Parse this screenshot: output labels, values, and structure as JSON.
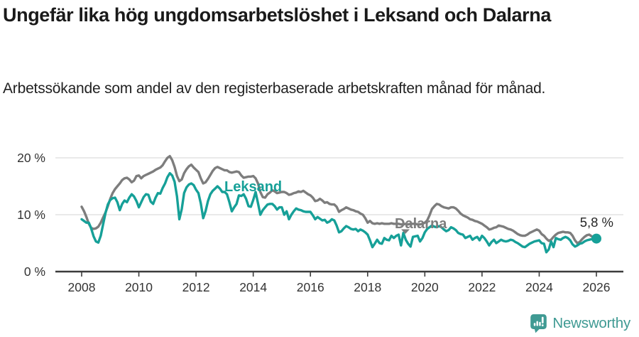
{
  "header": {
    "title": "Ungefär lika hög ungdomsarbetslöshet i Leksand och Dalarna",
    "subtitle": "Arbetssökande som andel av den registerbaserade arbetskraften månad för månad."
  },
  "footer": {
    "brand": "Newsworthy",
    "brand_color": "#3f9a93"
  },
  "chart_data": {
    "type": "line",
    "x_unit": "month",
    "x_range_years": [
      2008,
      2026
    ],
    "x_ticks": [
      2008,
      2010,
      2012,
      2014,
      2016,
      2018,
      2020,
      2022,
      2024,
      2026
    ],
    "y_ticks": [
      {
        "value": 0,
        "label": "0 %"
      },
      {
        "value": 10,
        "label": "10 %"
      },
      {
        "value": 20,
        "label": "20 %"
      }
    ],
    "ylim": [
      0,
      22
    ],
    "grid": "horizontal",
    "end_label": "5,8 %",
    "end_dot_series": "Leksand",
    "series": [
      {
        "name": "Dalarna",
        "color": "#7d7d7d",
        "values": [
          11.4,
          10.6,
          9.6,
          8.4,
          7.7,
          7.5,
          7.6,
          7.9,
          8.6,
          9.5,
          10.4,
          11.5,
          12.8,
          13.8,
          14.5,
          15.0,
          15.5,
          16.1,
          16.4,
          16.5,
          16.2,
          15.7,
          16.0,
          16.8,
          16.9,
          16.4,
          16.8,
          17.0,
          17.2,
          17.4,
          17.6,
          17.9,
          18.1,
          18.3,
          18.7,
          19.4,
          20.0,
          20.3,
          19.6,
          18.4,
          16.8,
          15.9,
          16.2,
          17.3,
          18.0,
          18.5,
          18.8,
          18.3,
          17.9,
          17.5,
          16.4,
          15.5,
          15.7,
          16.3,
          17.0,
          17.7,
          18.2,
          18.4,
          18.2,
          18.0,
          17.8,
          17.8,
          17.5,
          17.4,
          17.5,
          17.6,
          17.5,
          16.9,
          16.5,
          16.6,
          16.7,
          16.7,
          16.8,
          16.4,
          15.5,
          14.0,
          13.1,
          13.0,
          13.6,
          13.9,
          14.3,
          14.1,
          13.8,
          13.9,
          14.0,
          14.0,
          13.8,
          13.5,
          13.6,
          13.8,
          13.9,
          14.1,
          14.0,
          14.2,
          13.9,
          13.6,
          13.4,
          13.0,
          12.4,
          12.5,
          12.8,
          12.5,
          12.1,
          12.2,
          11.9,
          11.8,
          11.8,
          11.4,
          10.5,
          10.8,
          11.0,
          11.3,
          11.1,
          10.9,
          10.8,
          10.6,
          10.5,
          10.2,
          10.0,
          9.4,
          8.6,
          8.9,
          8.5,
          8.4,
          8.5,
          8.4,
          8.5,
          8.4,
          8.4,
          8.4,
          8.5,
          8.4,
          8.4,
          8.4,
          8.3,
          8.3,
          8.4,
          8.3,
          8.4,
          8.4,
          8.4,
          8.3,
          8.3,
          8.4,
          8.6,
          9.0,
          9.9,
          11.0,
          11.5,
          11.9,
          11.8,
          11.5,
          11.3,
          11.2,
          11.1,
          11.3,
          11.3,
          11.1,
          10.7,
          10.2,
          9.9,
          9.7,
          9.5,
          9.2,
          9.1,
          8.9,
          8.8,
          8.6,
          8.4,
          8.1,
          7.8,
          7.4,
          7.5,
          7.7,
          7.8,
          8.1,
          8.0,
          7.9,
          7.7,
          7.5,
          7.4,
          7.2,
          6.9,
          6.6,
          6.4,
          6.3,
          6.3,
          6.5,
          6.8,
          7.0,
          7.2,
          7.4,
          7.2,
          6.6,
          6.3,
          5.8,
          5.4,
          5.6,
          6.1,
          6.5,
          6.8,
          6.9,
          7.0,
          6.9,
          6.9,
          6.8,
          6.3,
          5.5,
          5.0,
          5.2,
          5.7,
          6.1,
          6.4,
          6.5,
          6.2,
          6.0,
          5.9
        ]
      },
      {
        "name": "Leksand",
        "color": "#16a098",
        "values": [
          9.2,
          8.9,
          8.6,
          8.6,
          7.6,
          6.2,
          5.3,
          5.1,
          6.3,
          8.3,
          10.3,
          11.8,
          12.6,
          12.9,
          13.0,
          12.2,
          10.8,
          11.9,
          12.5,
          12.2,
          13.0,
          13.6,
          13.2,
          12.4,
          11.3,
          12.2,
          13.1,
          13.6,
          13.5,
          12.3,
          11.9,
          13.0,
          13.8,
          13.7,
          14.7,
          15.5,
          16.6,
          17.3,
          16.9,
          15.8,
          13.2,
          9.2,
          11.0,
          13.8,
          14.8,
          15.3,
          15.5,
          15.2,
          14.4,
          13.8,
          12.0,
          9.4,
          10.6,
          12.4,
          13.6,
          14.2,
          14.6,
          15.0,
          14.6,
          14.0,
          14.0,
          13.6,
          12.2,
          10.6,
          11.3,
          11.9,
          13.4,
          13.3,
          13.6,
          12.8,
          11.5,
          11.4,
          12.6,
          14.0,
          12.0,
          10.0,
          10.8,
          11.3,
          11.8,
          11.9,
          11.9,
          11.5,
          10.9,
          11.3,
          11.3,
          10.0,
          10.6,
          9.2,
          10.0,
          10.6,
          11.1,
          10.9,
          10.8,
          10.6,
          10.5,
          10.5,
          10.5,
          9.9,
          9.2,
          9.6,
          9.3,
          9.0,
          9.1,
          8.6,
          8.8,
          9.2,
          9.0,
          8.1,
          6.9,
          7.1,
          7.6,
          8.0,
          7.8,
          7.5,
          7.4,
          7.5,
          7.1,
          7.4,
          7.2,
          6.9,
          6.5,
          5.5,
          4.3,
          4.9,
          5.6,
          5.0,
          4.9,
          5.9,
          5.6,
          5.5,
          6.3,
          5.9,
          6.3,
          6.5,
          4.6,
          6.8,
          5.6,
          4.9,
          4.4,
          6.1,
          6.2,
          6.3,
          5.3,
          5.9,
          6.9,
          7.5,
          7.8,
          8.1,
          7.9,
          7.8,
          8.0,
          7.8,
          7.4,
          7.1,
          7.3,
          7.8,
          7.6,
          7.3,
          6.8,
          6.6,
          6.5,
          5.9,
          6.1,
          6.3,
          5.6,
          5.9,
          6.1,
          5.5,
          6.3,
          5.9,
          5.3,
          4.6,
          5.2,
          5.6,
          5.0,
          5.3,
          5.6,
          5.4,
          5.3,
          5.4,
          5.6,
          5.5,
          5.2,
          5.0,
          4.7,
          4.4,
          4.3,
          4.6,
          4.9,
          5.1,
          5.3,
          5.4,
          5.5,
          5.0,
          4.9,
          3.4,
          3.9,
          5.3,
          4.3,
          5.9,
          5.7,
          5.6,
          5.9,
          6.1,
          5.9,
          5.5,
          4.8,
          4.4,
          4.6,
          4.9,
          5.0,
          5.3,
          5.5,
          5.6,
          5.7,
          5.75,
          5.8
        ]
      }
    ]
  }
}
